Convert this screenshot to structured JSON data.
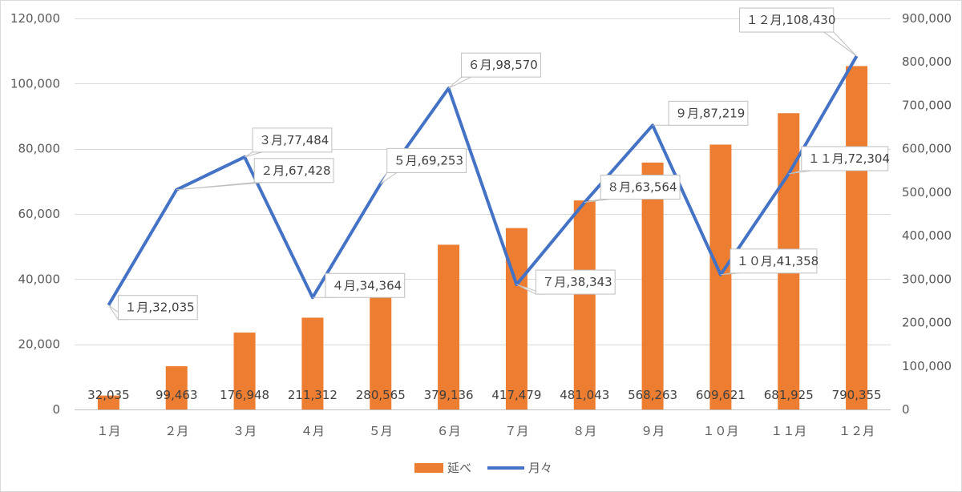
{
  "chart_data": {
    "type": "bar",
    "categories": [
      "１月",
      "２月",
      "３月",
      "４月",
      "５月",
      "６月",
      "７月",
      "８月",
      "９月",
      "１０月",
      "１１月",
      "１２月"
    ],
    "series": [
      {
        "name": "延べ",
        "type": "bar",
        "axis": "right",
        "color": "#ed7d31",
        "values": [
          32035,
          99463,
          176948,
          211312,
          280565,
          379136,
          417479,
          481043,
          568263,
          609621,
          681925,
          790355
        ],
        "labels": [
          "32,035",
          "99,463",
          "176,948",
          "211,312",
          "280,565",
          "379,136",
          "417,479",
          "481,043",
          "568,263",
          "609,621",
          "681,925",
          "790,355"
        ]
      },
      {
        "name": "月々",
        "type": "line",
        "axis": "left",
        "color": "#4472c4",
        "values": [
          32035,
          67428,
          77484,
          34364,
          69253,
          98570,
          38343,
          63564,
          87219,
          41358,
          72304,
          108430
        ],
        "labels": [
          "１月,32,035",
          "２月,67,428",
          "３月,77,484",
          "４月,34,364",
          "５月,69,253",
          "６月,98,570",
          "７月,38,343",
          "８月,63,564",
          "９月,87,219",
          "１０月,41,358",
          "１１月,72,304",
          "１２月,108,430"
        ]
      }
    ],
    "left_axis": {
      "ylim": [
        0,
        120000
      ],
      "ticks": [
        0,
        20000,
        40000,
        60000,
        80000,
        100000,
        120000
      ],
      "tick_labels": [
        "0",
        "20,000",
        "40,000",
        "60,000",
        "80,000",
        "100,000",
        "120,000"
      ]
    },
    "right_axis": {
      "ylim": [
        0,
        900000
      ],
      "ticks": [
        0,
        100000,
        200000,
        300000,
        400000,
        500000,
        600000,
        700000,
        800000,
        900000
      ],
      "tick_labels": [
        "0",
        "100,000",
        "200,000",
        "300,000",
        "400,000",
        "500,000",
        "600,000",
        "700,000",
        "800,000",
        "900,000"
      ]
    },
    "grid": true,
    "legend": {
      "position": "bottom",
      "items": [
        {
          "label": "延べ",
          "color": "#ed7d31",
          "marker": "square"
        },
        {
          "label": "月々",
          "color": "#4472c4",
          "marker": "line"
        }
      ]
    }
  }
}
